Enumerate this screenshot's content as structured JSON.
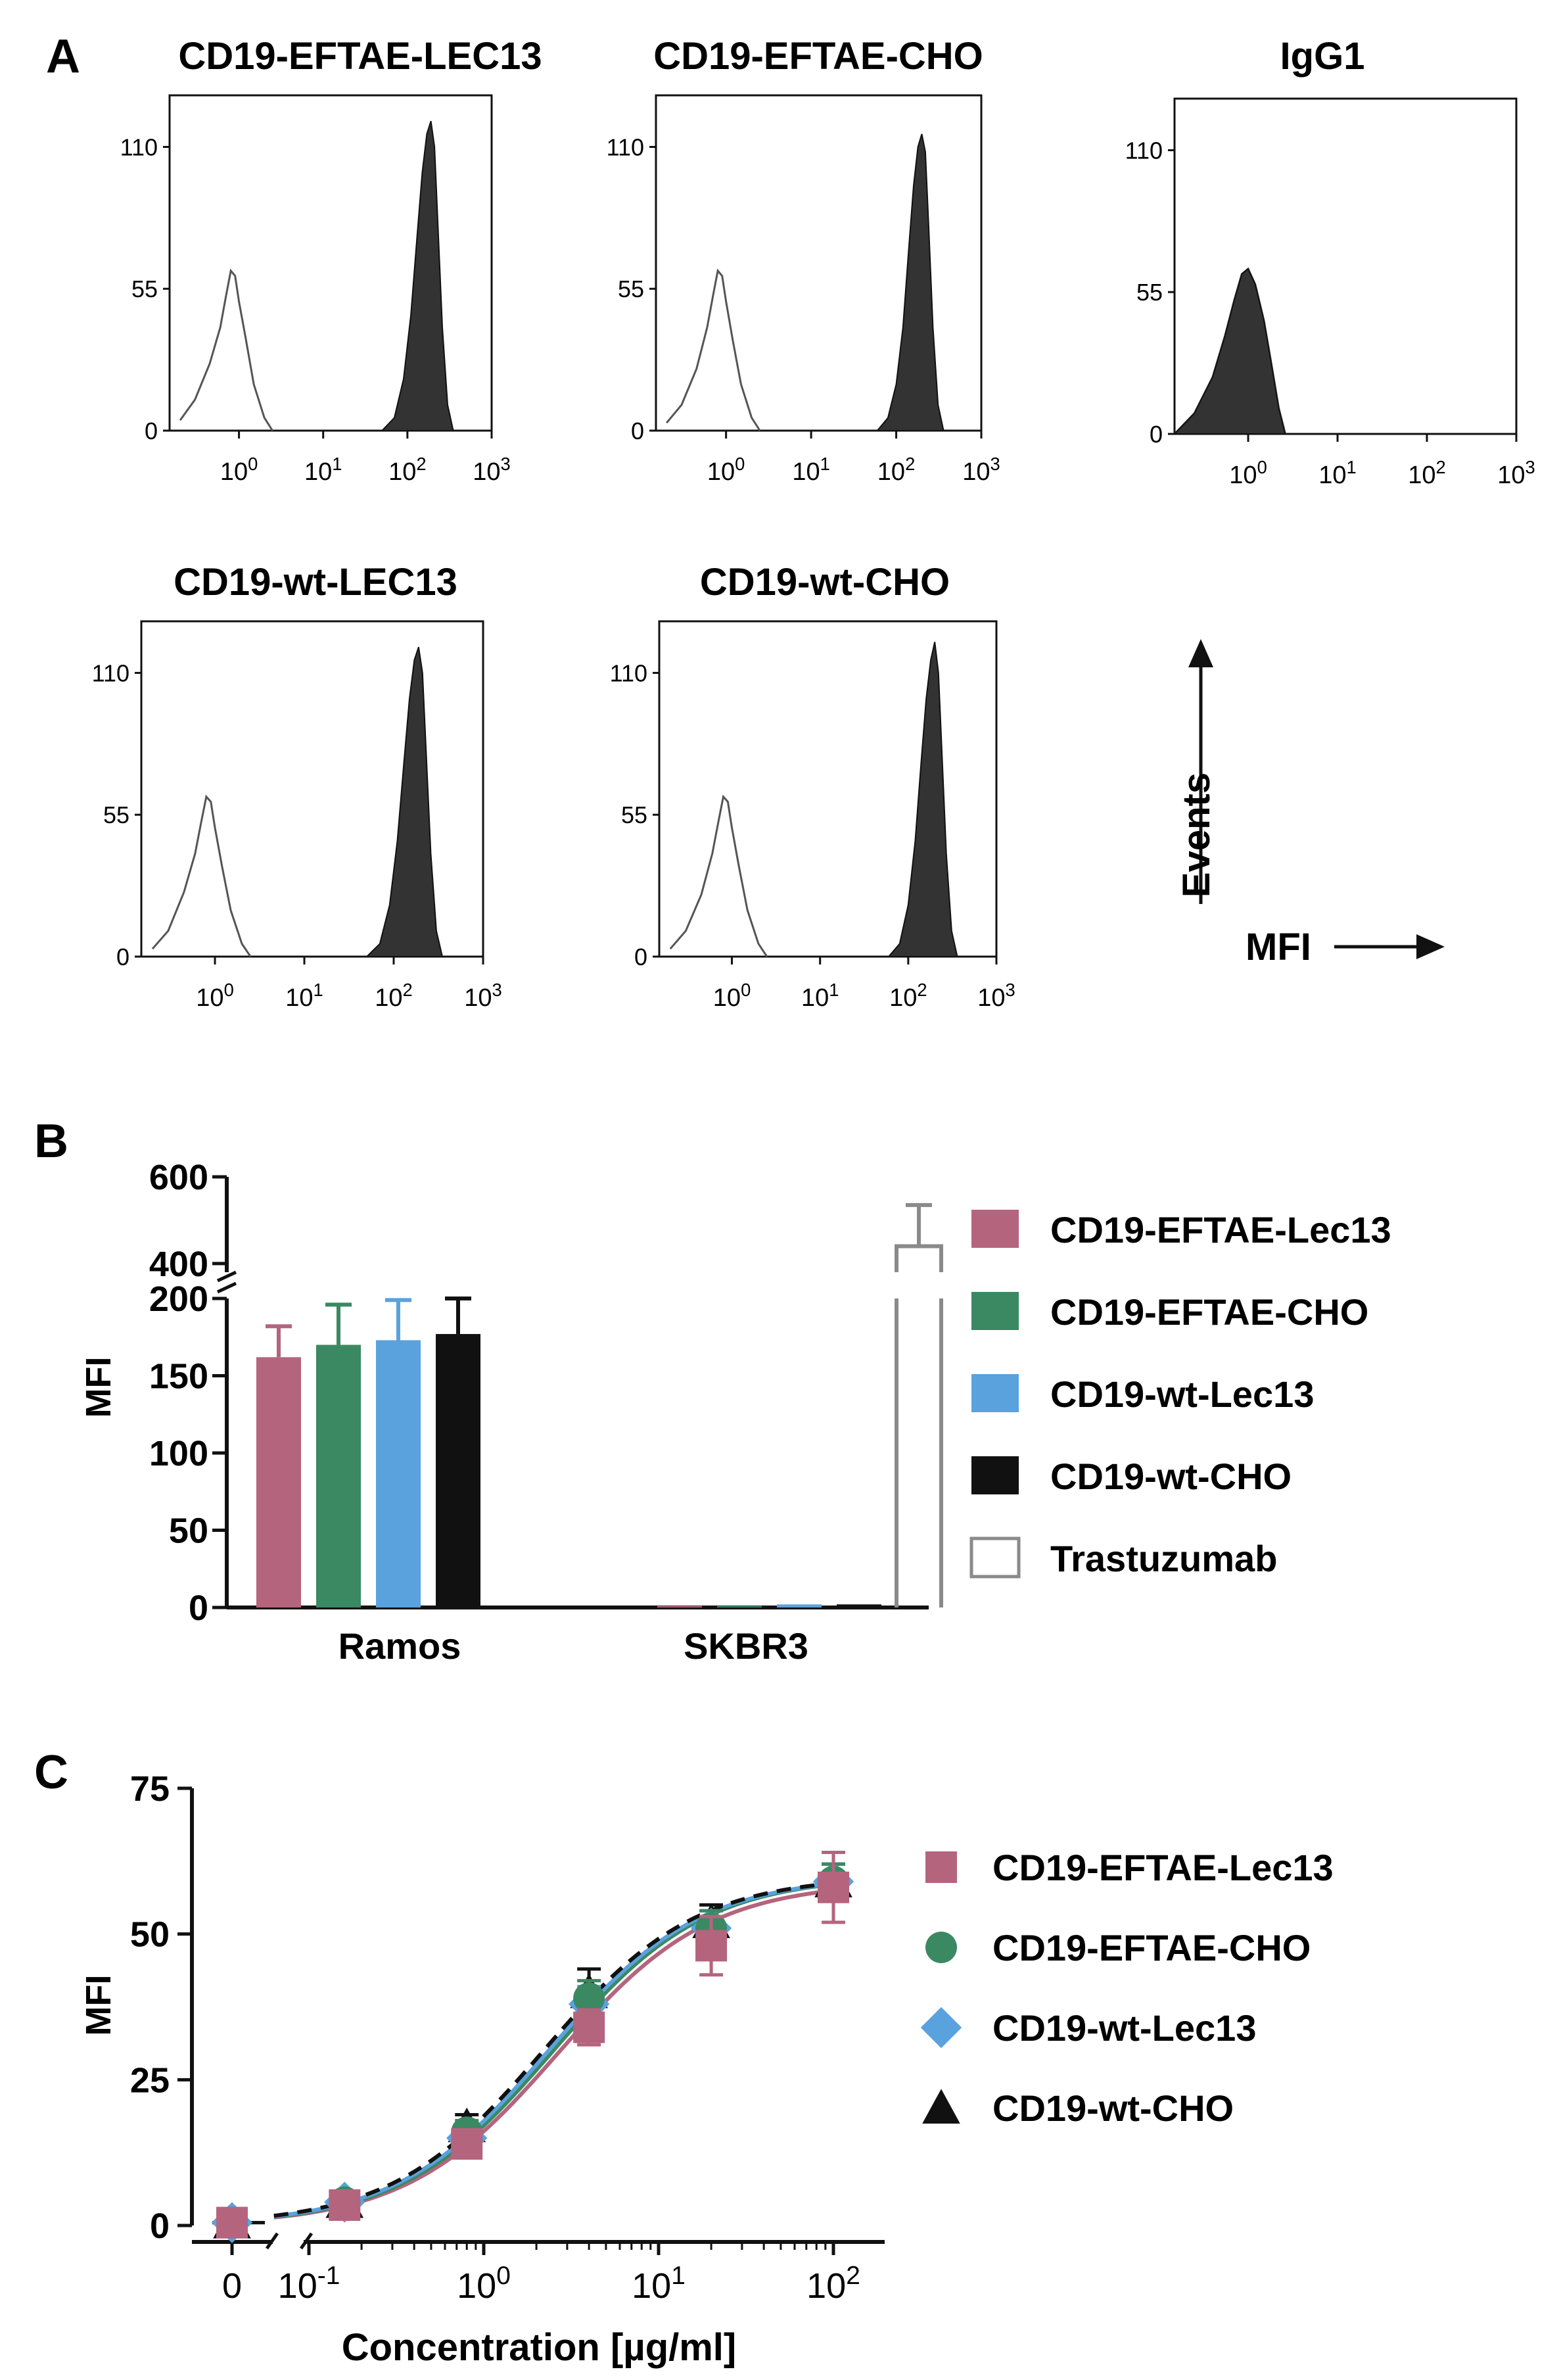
{
  "panels": {
    "A": {
      "letter": "A",
      "axis_note": {
        "y": "Events",
        "x": "MFI"
      },
      "x_tick_labels": [
        "10^0",
        "10^1",
        "10^2",
        "10^3"
      ],
      "y_tick_labels": [
        "0",
        "55",
        "110"
      ]
    },
    "B": {
      "letter": "B"
    },
    "C": {
      "letter": "C"
    }
  },
  "chart_data": [
    {
      "type": "area",
      "panel": "A",
      "title": "CD19-EFTAE-LEC13",
      "xscale": "log",
      "xlim": [
        0.15,
        1000
      ],
      "ylim": [
        0,
        130
      ],
      "series": [
        {
          "style": "outline",
          "x": [
            0.2,
            0.3,
            0.45,
            0.6,
            0.7,
            0.8,
            0.9,
            1.0,
            1.2,
            1.5,
            2.0,
            2.5
          ],
          "y": [
            4,
            12,
            26,
            40,
            52,
            62,
            60,
            50,
            36,
            18,
            5,
            0
          ]
        },
        {
          "style": "filled",
          "x": [
            50,
            70,
            90,
            110,
            130,
            150,
            170,
            190,
            210,
            230,
            260,
            300,
            350
          ],
          "y": [
            0,
            5,
            20,
            45,
            75,
            100,
            115,
            120,
            110,
            80,
            40,
            10,
            0
          ]
        }
      ]
    },
    {
      "type": "area",
      "panel": "A",
      "title": "CD19-EFTAE-CHO",
      "xscale": "log",
      "xlim": [
        0.15,
        1000
      ],
      "ylim": [
        0,
        130
      ],
      "series": [
        {
          "style": "outline",
          "x": [
            0.2,
            0.3,
            0.45,
            0.6,
            0.7,
            0.8,
            0.9,
            1.0,
            1.2,
            1.5,
            2.0,
            2.5
          ],
          "y": [
            3,
            10,
            24,
            40,
            52,
            62,
            60,
            50,
            35,
            18,
            5,
            0
          ]
        },
        {
          "style": "filled",
          "x": [
            60,
            80,
            100,
            120,
            140,
            160,
            180,
            200,
            220,
            240,
            270,
            310,
            360
          ],
          "y": [
            0,
            5,
            18,
            40,
            70,
            95,
            110,
            115,
            108,
            80,
            40,
            10,
            0
          ]
        }
      ]
    },
    {
      "type": "area",
      "panel": "A",
      "title": "IgG1",
      "xscale": "log",
      "xlim": [
        0.15,
        1000
      ],
      "ylim": [
        0,
        130
      ],
      "series": [
        {
          "style": "outline",
          "x": [
            0.15,
            0.25,
            0.4,
            0.55,
            0.7,
            0.85,
            1.0,
            1.2,
            1.5,
            1.8,
            2.2,
            2.6
          ],
          "y": [
            0,
            8,
            22,
            38,
            52,
            62,
            64,
            58,
            44,
            28,
            10,
            0
          ]
        },
        {
          "style": "filled",
          "x": [
            0.15,
            0.25,
            0.4,
            0.55,
            0.7,
            0.85,
            1.0,
            1.2,
            1.5,
            1.8,
            2.2,
            2.6
          ],
          "y": [
            0,
            8,
            22,
            38,
            52,
            62,
            64,
            58,
            44,
            28,
            10,
            0
          ]
        }
      ]
    },
    {
      "type": "area",
      "panel": "A",
      "title": "CD19-wt-LEC13",
      "xscale": "log",
      "xlim": [
        0.15,
        1000
      ],
      "ylim": [
        0,
        130
      ],
      "series": [
        {
          "style": "outline",
          "x": [
            0.2,
            0.3,
            0.45,
            0.6,
            0.7,
            0.8,
            0.9,
            1.0,
            1.2,
            1.5,
            2.0,
            2.5
          ],
          "y": [
            3,
            10,
            25,
            40,
            52,
            62,
            60,
            50,
            35,
            18,
            5,
            0
          ]
        },
        {
          "style": "filled",
          "x": [
            50,
            70,
            90,
            110,
            130,
            150,
            170,
            190,
            210,
            230,
            260,
            300,
            350
          ],
          "y": [
            0,
            5,
            20,
            45,
            75,
            100,
            115,
            120,
            110,
            80,
            40,
            10,
            0
          ]
        }
      ]
    },
    {
      "type": "area",
      "panel": "A",
      "title": "CD19-wt-CHO",
      "xscale": "log",
      "xlim": [
        0.15,
        1000
      ],
      "ylim": [
        0,
        130
      ],
      "series": [
        {
          "style": "outline",
          "x": [
            0.2,
            0.3,
            0.45,
            0.6,
            0.7,
            0.8,
            0.9,
            1.0,
            1.2,
            1.5,
            2.0,
            2.5
          ],
          "y": [
            3,
            10,
            24,
            40,
            52,
            62,
            60,
            50,
            35,
            18,
            5,
            0
          ]
        },
        {
          "style": "filled",
          "x": [
            60,
            80,
            100,
            120,
            140,
            160,
            180,
            200,
            220,
            240,
            270,
            310,
            360
          ],
          "y": [
            0,
            5,
            20,
            45,
            75,
            100,
            115,
            122,
            110,
            80,
            40,
            10,
            0
          ]
        }
      ]
    },
    {
      "type": "bar",
      "panel": "B",
      "ylabel": "MFI",
      "y_ticks": [
        0,
        50,
        100,
        150,
        200,
        400,
        600
      ],
      "y_break": [
        200,
        380
      ],
      "ylim_lower": [
        0,
        200
      ],
      "ylim_upper": [
        380,
        600
      ],
      "categories": [
        "Ramos",
        "SKBR3"
      ],
      "series": [
        {
          "name": "CD19-EFTAE-Lec13",
          "color": "#b5647e",
          "values": [
            162,
            1
          ],
          "errors": [
            20,
            0
          ]
        },
        {
          "name": "CD19-EFTAE-CHO",
          "color": "#3a8962",
          "values": [
            170,
            1
          ],
          "errors": [
            26,
            0
          ]
        },
        {
          "name": "CD19-wt-Lec13",
          "color": "#5aa2dd",
          "values": [
            173,
            2
          ],
          "errors": [
            26,
            0
          ]
        },
        {
          "name": "CD19-wt-CHO",
          "color": "#111111",
          "values": [
            177,
            2
          ],
          "errors": [
            23,
            0
          ]
        },
        {
          "name": "Trastuzumab",
          "color": "#8a8a8a",
          "values": [
            0,
            440
          ],
          "errors": [
            0,
            95
          ]
        }
      ]
    },
    {
      "type": "scatter",
      "panel": "C",
      "xlabel": "Concentration [µg/ml]",
      "ylabel": "MFI",
      "xscale": "log",
      "ylim": [
        0,
        75
      ],
      "y_ticks": [
        0,
        25,
        50,
        75
      ],
      "x_tick_labels": [
        "0",
        "10^-1",
        "10^0",
        "10^1",
        "10^2"
      ],
      "x": [
        0,
        0.16,
        0.8,
        4,
        20,
        100
      ],
      "series": [
        {
          "name": "CD19-EFTAE-Lec13",
          "marker": "square",
          "color": "#b5647e",
          "fit": "solid",
          "y": [
            0.5,
            3.5,
            14,
            34,
            48,
            58
          ],
          "errors": [
            1,
            1,
            2,
            3,
            5,
            6
          ]
        },
        {
          "name": "CD19-EFTAE-CHO",
          "marker": "circle",
          "color": "#3a8962",
          "fit": "solid",
          "y": [
            0.5,
            4,
            16,
            39,
            51,
            59
          ],
          "errors": [
            1,
            1,
            2,
            3,
            3,
            3
          ]
        },
        {
          "name": "CD19-wt-Lec13",
          "marker": "diamond",
          "color": "#5aa2dd",
          "fit": "solid",
          "y": [
            0.5,
            4,
            15,
            38,
            51,
            59
          ],
          "errors": [
            1,
            1,
            2,
            3,
            3,
            3
          ]
        },
        {
          "name": "CD19-wt-CHO",
          "marker": "triangle",
          "color": "#111111",
          "fit": "dashed",
          "y": [
            0.5,
            4,
            17,
            40,
            52,
            59
          ],
          "errors": [
            1,
            1,
            2,
            4,
            3,
            3
          ]
        }
      ]
    }
  ]
}
